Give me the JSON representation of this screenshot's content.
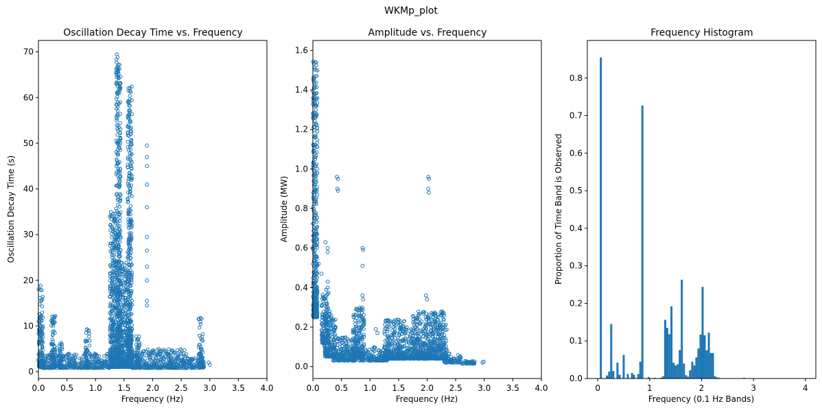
{
  "figure": {
    "suptitle": "WKMp_plot"
  },
  "colors": {
    "series": "#1f77b4"
  },
  "chart_data": [
    {
      "type": "scatter",
      "title": "Oscillation Decay Time vs. Frequency",
      "xlabel": "Frequency (Hz)",
      "ylabel": "Oscillation Decay Time (s)",
      "xlim": [
        0.0,
        4.0
      ],
      "ylim": [
        -1.5,
        72.5
      ],
      "xticks": [
        0.0,
        0.5,
        1.0,
        1.5,
        2.0,
        2.5,
        3.0,
        3.5,
        4.0
      ],
      "xtick_labels": [
        "0.0",
        "0.5",
        "1.0",
        "1.5",
        "2.0",
        "2.5",
        "3.0",
        "3.5",
        "4.0"
      ],
      "yticks": [
        0,
        10,
        20,
        30,
        40,
        50,
        60,
        70
      ],
      "ytick_labels": [
        "0",
        "10",
        "20",
        "30",
        "40",
        "50",
        "60",
        "70"
      ],
      "grid": false,
      "marker": "open-circle",
      "clusters": [
        {
          "x": [
            0.0,
            0.08
          ],
          "y": [
            1.0,
            19.0
          ]
        },
        {
          "x": [
            0.05,
            1.25
          ],
          "y": [
            0.8,
            4.0
          ]
        },
        {
          "x": [
            0.22,
            0.3
          ],
          "y": [
            1.0,
            13.0
          ]
        },
        {
          "x": [
            0.36,
            0.42
          ],
          "y": [
            1.0,
            7.0
          ]
        },
        {
          "x": [
            0.82,
            0.9
          ],
          "y": [
            1.0,
            9.5
          ]
        },
        {
          "x": [
            1.25,
            1.36
          ],
          "y": [
            1.0,
            35.0
          ]
        },
        {
          "x": [
            1.36,
            1.44
          ],
          "y": [
            1.0,
            69.5
          ]
        },
        {
          "x": [
            1.44,
            1.56
          ],
          "y": [
            1.0,
            24.0
          ]
        },
        {
          "x": [
            1.56,
            1.64
          ],
          "y": [
            1.0,
            62.5
          ]
        },
        {
          "x": [
            1.64,
            2.6
          ],
          "y": [
            0.8,
            5.0
          ]
        },
        {
          "x": [
            1.7,
            1.78
          ],
          "y": [
            1.0,
            8.0
          ]
        },
        {
          "x": [
            2.6,
            2.9
          ],
          "y": [
            0.8,
            3.0
          ]
        },
        {
          "x": [
            2.8,
            2.88
          ],
          "y": [
            1.0,
            12.0
          ]
        }
      ],
      "points": [
        {
          "x": 1.9,
          "y": 49.5
        },
        {
          "x": 1.9,
          "y": 47.0
        },
        {
          "x": 1.9,
          "y": 45.0
        },
        {
          "x": 1.9,
          "y": 41.0
        },
        {
          "x": 1.9,
          "y": 36.0
        },
        {
          "x": 1.9,
          "y": 29.5
        },
        {
          "x": 1.9,
          "y": 26.5
        },
        {
          "x": 1.9,
          "y": 23.0
        },
        {
          "x": 1.9,
          "y": 20.0
        },
        {
          "x": 1.9,
          "y": 15.5
        },
        {
          "x": 1.9,
          "y": 14.5
        },
        {
          "x": 2.98,
          "y": 2.0
        },
        {
          "x": 3.0,
          "y": 1.5
        },
        {
          "x": 2.72,
          "y": 1.5
        }
      ]
    },
    {
      "type": "scatter",
      "title": "Amplitude vs. Frequency",
      "xlabel": "Frequency (Hz)",
      "ylabel": "Amplitude (MW)",
      "xlim": [
        0.0,
        4.0
      ],
      "ylim": [
        -0.06,
        1.65
      ],
      "xticks": [
        0.0,
        0.5,
        1.0,
        1.5,
        2.0,
        2.5,
        3.0,
        3.5,
        4.0
      ],
      "xtick_labels": [
        "0.0",
        "0.5",
        "1.0",
        "1.5",
        "2.0",
        "2.5",
        "3.0",
        "3.5",
        "4.0"
      ],
      "yticks": [
        0.0,
        0.2,
        0.4,
        0.6,
        0.8,
        1.0,
        1.2,
        1.4,
        1.6
      ],
      "ytick_labels": [
        "0.0",
        "0.2",
        "0.4",
        "0.6",
        "0.8",
        "1.0",
        "1.2",
        "1.4",
        "1.6"
      ],
      "grid": false,
      "marker": "open-circle",
      "clusters": [
        {
          "x": [
            0.0,
            0.08
          ],
          "y": [
            0.25,
            1.57
          ]
        },
        {
          "x": [
            0.15,
            0.28
          ],
          "y": [
            0.12,
            0.4
          ]
        },
        {
          "x": [
            0.2,
            0.4
          ],
          "y": [
            0.05,
            0.28
          ]
        },
        {
          "x": [
            0.35,
            0.75
          ],
          "y": [
            0.03,
            0.15
          ]
        },
        {
          "x": [
            0.7,
            0.9
          ],
          "y": [
            0.05,
            0.3
          ]
        },
        {
          "x": [
            0.8,
            1.3
          ],
          "y": [
            0.03,
            0.1
          ]
        },
        {
          "x": [
            1.25,
            1.6
          ],
          "y": [
            0.04,
            0.24
          ]
        },
        {
          "x": [
            1.6,
            1.75
          ],
          "y": [
            0.04,
            0.2
          ]
        },
        {
          "x": [
            1.75,
            2.35
          ],
          "y": [
            0.04,
            0.28
          ]
        },
        {
          "x": [
            2.3,
            2.6
          ],
          "y": [
            0.02,
            0.07
          ]
        },
        {
          "x": [
            2.6,
            2.85
          ],
          "y": [
            0.015,
            0.03
          ]
        }
      ],
      "points": [
        {
          "x": 0.42,
          "y": 0.96
        },
        {
          "x": 0.44,
          "y": 0.95
        },
        {
          "x": 0.43,
          "y": 0.9
        },
        {
          "x": 0.44,
          "y": 0.89
        },
        {
          "x": 2.02,
          "y": 0.96
        },
        {
          "x": 2.03,
          "y": 0.95
        },
        {
          "x": 2.02,
          "y": 0.9
        },
        {
          "x": 2.03,
          "y": 0.88
        },
        {
          "x": 0.87,
          "y": 0.6
        },
        {
          "x": 0.88,
          "y": 0.59
        },
        {
          "x": 0.87,
          "y": 0.51
        },
        {
          "x": 0.22,
          "y": 0.63
        },
        {
          "x": 0.26,
          "y": 0.6
        },
        {
          "x": 0.26,
          "y": 0.58
        },
        {
          "x": 0.15,
          "y": 0.47
        },
        {
          "x": 0.1,
          "y": 0.52
        },
        {
          "x": 0.87,
          "y": 0.36
        },
        {
          "x": 0.88,
          "y": 0.34
        },
        {
          "x": 1.98,
          "y": 0.36
        },
        {
          "x": 2.0,
          "y": 0.34
        },
        {
          "x": 0.26,
          "y": 0.43
        },
        {
          "x": 0.26,
          "y": 0.4
        },
        {
          "x": 2.97,
          "y": 0.02
        },
        {
          "x": 2.99,
          "y": 0.025
        },
        {
          "x": 1.1,
          "y": 0.19
        },
        {
          "x": 1.13,
          "y": 0.17
        }
      ]
    },
    {
      "type": "bar",
      "title": "Frequency Histogram",
      "xlabel": "Frequency (0.1 Hz Bands)",
      "ylabel": "Proportion of Time Band is Observed",
      "xlim": [
        -0.2,
        4.2
      ],
      "ylim": [
        0.0,
        0.9
      ],
      "xticks": [
        0,
        1,
        2,
        3,
        4
      ],
      "xtick_labels": [
        "0",
        "1",
        "2",
        "3",
        "4"
      ],
      "yticks": [
        0.0,
        0.1,
        0.2,
        0.3,
        0.4,
        0.5,
        0.6,
        0.7,
        0.8
      ],
      "ytick_labels": [
        "0.0",
        "0.1",
        "0.2",
        "0.3",
        "0.4",
        "0.5",
        "0.6",
        "0.7",
        "0.8"
      ],
      "grid": false,
      "bin_width": 0.04,
      "bins": [
        {
          "x": 0.06,
          "value": 0.855
        },
        {
          "x": 0.18,
          "value": 0.008
        },
        {
          "x": 0.22,
          "value": 0.018
        },
        {
          "x": 0.26,
          "value": 0.145
        },
        {
          "x": 0.3,
          "value": 0.02
        },
        {
          "x": 0.38,
          "value": 0.042
        },
        {
          "x": 0.42,
          "value": 0.01
        },
        {
          "x": 0.5,
          "value": 0.063
        },
        {
          "x": 0.58,
          "value": 0.012
        },
        {
          "x": 0.66,
          "value": 0.015
        },
        {
          "x": 0.7,
          "value": 0.01
        },
        {
          "x": 0.78,
          "value": 0.012
        },
        {
          "x": 0.82,
          "value": 0.045
        },
        {
          "x": 0.86,
          "value": 0.727
        },
        {
          "x": 0.98,
          "value": 0.004
        },
        {
          "x": 1.1,
          "value": 0.002
        },
        {
          "x": 1.22,
          "value": 0.002
        },
        {
          "x": 1.26,
          "value": 0.006
        },
        {
          "x": 1.3,
          "value": 0.156
        },
        {
          "x": 1.34,
          "value": 0.135
        },
        {
          "x": 1.38,
          "value": 0.118
        },
        {
          "x": 1.42,
          "value": 0.192
        },
        {
          "x": 1.46,
          "value": 0.042
        },
        {
          "x": 1.5,
          "value": 0.035
        },
        {
          "x": 1.54,
          "value": 0.038
        },
        {
          "x": 1.58,
          "value": 0.076
        },
        {
          "x": 1.62,
          "value": 0.263
        },
        {
          "x": 1.66,
          "value": 0.04
        },
        {
          "x": 1.7,
          "value": 0.009
        },
        {
          "x": 1.74,
          "value": 0.005
        },
        {
          "x": 1.78,
          "value": 0.022
        },
        {
          "x": 1.82,
          "value": 0.045
        },
        {
          "x": 1.86,
          "value": 0.035
        },
        {
          "x": 1.9,
          "value": 0.056
        },
        {
          "x": 1.94,
          "value": 0.08
        },
        {
          "x": 1.98,
          "value": 0.117
        },
        {
          "x": 2.02,
          "value": 0.244
        },
        {
          "x": 2.06,
          "value": 0.115
        },
        {
          "x": 2.1,
          "value": 0.075
        },
        {
          "x": 2.14,
          "value": 0.122
        },
        {
          "x": 2.18,
          "value": 0.068
        },
        {
          "x": 2.22,
          "value": 0.068
        },
        {
          "x": 2.26,
          "value": 0.006
        },
        {
          "x": 2.3,
          "value": 0.003
        },
        {
          "x": 2.34,
          "value": 0.002
        },
        {
          "x": 2.82,
          "value": 0.002
        },
        {
          "x": 2.98,
          "value": 0.001
        }
      ]
    }
  ]
}
